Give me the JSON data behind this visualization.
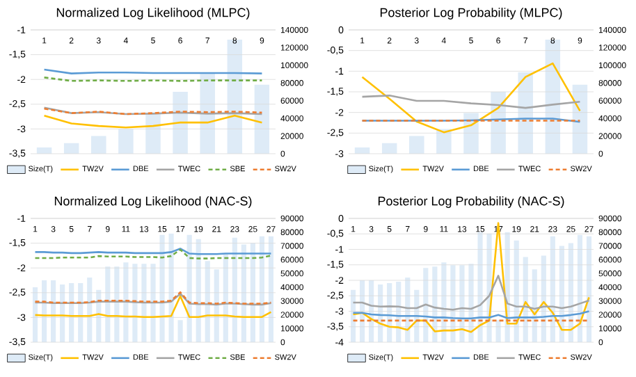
{
  "chart_data": [
    {
      "type": "line",
      "title": "Normalized Log Likelihood (MLPC)",
      "categories": [
        "1",
        "2",
        "3",
        "4",
        "5",
        "6",
        "7",
        "8",
        "9"
      ],
      "series": [
        {
          "name": "Size(T)",
          "type": "bar",
          "axis": "y2",
          "color": "#deebf7",
          "values": [
            7000,
            12000,
            20000,
            28000,
            46000,
            70000,
            92000,
            129000,
            78000
          ]
        },
        {
          "name": "TW2V",
          "color": "#ffc000",
          "values": [
            -2.73,
            -2.89,
            -2.94,
            -2.97,
            -2.94,
            -2.87,
            -2.87,
            -2.73,
            -2.87
          ]
        },
        {
          "name": "DBE",
          "color": "#5b9bd5",
          "values": [
            -1.8,
            -1.88,
            -1.86,
            -1.86,
            -1.87,
            -1.87,
            -1.87,
            -1.87,
            -1.88
          ]
        },
        {
          "name": "TWEC",
          "color": "#a5a5a5",
          "values": [
            -2.57,
            -2.68,
            -2.66,
            -2.7,
            -2.69,
            -2.67,
            -2.69,
            -2.68,
            -2.7
          ]
        },
        {
          "name": "SBE",
          "color": "#70ad47",
          "line_style": "dashed",
          "values": [
            -1.96,
            -2.03,
            -2.02,
            -2.03,
            -2.02,
            -2.03,
            -2.02,
            -2.02,
            -2.02
          ]
        },
        {
          "name": "SW2V",
          "color": "#ed7d31",
          "line_style": "dashed",
          "values": [
            -2.59,
            -2.68,
            -2.65,
            -2.7,
            -2.68,
            -2.65,
            -2.66,
            -2.65,
            -2.67
          ]
        }
      ],
      "ylim": [
        -3.5,
        -1
      ],
      "yticks": [
        -1,
        {
          "value": -1.5,
          "label": "-1,5"
        },
        -2,
        {
          "value": -2.5,
          "label": "-2,5"
        },
        -3,
        {
          "value": -3.5,
          "label": "-3,5"
        }
      ],
      "y2lim": [
        0,
        140000
      ],
      "y2ticks": [
        0,
        20000,
        40000,
        60000,
        80000,
        100000,
        120000,
        140000
      ],
      "grid": "y",
      "legend": "bottom"
    },
    {
      "type": "line",
      "title": "Posterior Log Probability (MLPC)",
      "categories": [
        "1",
        "2",
        "3",
        "4",
        "5",
        "6",
        "7",
        "8",
        "9"
      ],
      "series": [
        {
          "name": "Size(T)",
          "type": "bar",
          "axis": "y2",
          "color": "#deebf7",
          "values": [
            7000,
            12000,
            20000,
            28000,
            46000,
            70000,
            92000,
            129000,
            78000
          ]
        },
        {
          "name": "TW2V",
          "color": "#ffc000",
          "values": [
            -1.14,
            -1.67,
            -2.22,
            -2.48,
            -2.31,
            -1.89,
            -1.14,
            -0.81,
            -1.96
          ]
        },
        {
          "name": "DBE",
          "color": "#5b9bd5",
          "values": [
            -2.2,
            -2.2,
            -2.2,
            -2.2,
            -2.19,
            -2.17,
            -2.15,
            -2.15,
            -2.23
          ]
        },
        {
          "name": "TWEC",
          "color": "#a5a5a5",
          "values": [
            -1.62,
            -1.59,
            -1.72,
            -1.72,
            -1.78,
            -1.82,
            -1.89,
            -1.81,
            -1.74
          ]
        },
        {
          "name": "SW2V",
          "color": "#ed7d31",
          "line_style": "dashed",
          "values": [
            -2.2,
            -2.2,
            -2.2,
            -2.2,
            -2.2,
            -2.2,
            -2.2,
            -2.2,
            -2.2
          ]
        }
      ],
      "ylim": [
        -3,
        0
      ],
      "yticks": [
        0,
        {
          "value": -0.5,
          "label": "-0,5"
        },
        -1,
        {
          "value": -1.5,
          "label": "-1,5"
        },
        -2,
        {
          "value": -2.5,
          "label": "-2,5"
        },
        -3
      ],
      "y2lim": [
        0,
        140000
      ],
      "y2ticks": [
        0,
        20000,
        40000,
        60000,
        80000,
        100000,
        120000,
        140000
      ],
      "grid": "y",
      "legend": "bottom"
    },
    {
      "type": "line",
      "title": "Normalized Log Likelihood (NAC-S)",
      "categories": [
        "1",
        null,
        "3",
        null,
        "5",
        null,
        "7",
        null,
        "9",
        null,
        "11",
        null,
        "13",
        null,
        "15",
        null,
        "17",
        null,
        "19",
        null,
        "21",
        null,
        "23",
        null,
        "25",
        null,
        "27"
      ],
      "series": [
        {
          "name": "Size(T)",
          "type": "bar",
          "axis": "y2",
          "color": "#deebf7",
          "values": [
            40000,
            45000,
            45000,
            42000,
            43000,
            43000,
            47000,
            38000,
            55000,
            55000,
            58000,
            57000,
            57000,
            57000,
            78000,
            79000,
            16000,
            78000,
            75000,
            59000,
            53000,
            64000,
            76000,
            71000,
            72000,
            77000,
            77000
          ]
        },
        {
          "name": "TW2V",
          "color": "#ffc000",
          "values": [
            -2.95,
            -2.96,
            -2.96,
            -2.96,
            -2.97,
            -2.97,
            -2.97,
            -2.93,
            -2.97,
            -2.97,
            -2.98,
            -2.98,
            -2.99,
            -2.99,
            -2.98,
            -2.97,
            -2.57,
            -2.99,
            -2.99,
            -2.96,
            -2.96,
            -2.96,
            -2.98,
            -2.99,
            -2.99,
            -2.99,
            -2.89
          ]
        },
        {
          "name": "DBE",
          "color": "#5b9bd5",
          "values": [
            -1.68,
            -1.68,
            -1.69,
            -1.69,
            -1.7,
            -1.7,
            -1.69,
            -1.68,
            -1.69,
            -1.69,
            -1.69,
            -1.7,
            -1.7,
            -1.7,
            -1.7,
            -1.68,
            -1.61,
            -1.71,
            -1.72,
            -1.72,
            -1.72,
            -1.71,
            -1.71,
            -1.71,
            -1.71,
            -1.71,
            -1.71
          ]
        },
        {
          "name": "TWEC",
          "color": "#a5a5a5",
          "values": [
            -2.7,
            -2.7,
            -2.71,
            -2.71,
            -2.71,
            -2.71,
            -2.7,
            -2.68,
            -2.68,
            -2.68,
            -2.68,
            -2.69,
            -2.7,
            -2.7,
            -2.7,
            -2.68,
            -2.52,
            -2.72,
            -2.73,
            -2.73,
            -2.74,
            -2.72,
            -2.72,
            -2.73,
            -2.74,
            -2.74,
            -2.71
          ]
        },
        {
          "name": "SBE",
          "color": "#70ad47",
          "line_style": "dashed",
          "values": [
            -1.8,
            -1.8,
            -1.8,
            -1.79,
            -1.79,
            -1.79,
            -1.79,
            -1.76,
            -1.77,
            -1.77,
            -1.77,
            -1.78,
            -1.78,
            -1.78,
            -1.79,
            -1.76,
            -1.63,
            -1.8,
            -1.81,
            -1.81,
            -1.8,
            -1.8,
            -1.8,
            -1.8,
            -1.8,
            -1.79,
            -1.75
          ]
        },
        {
          "name": "SW2V",
          "color": "#ed7d31",
          "line_style": "dashed",
          "values": [
            -2.68,
            -2.68,
            -2.7,
            -2.7,
            -2.7,
            -2.7,
            -2.69,
            -2.66,
            -2.66,
            -2.66,
            -2.66,
            -2.67,
            -2.68,
            -2.68,
            -2.68,
            -2.66,
            -2.49,
            -2.7,
            -2.71,
            -2.71,
            -2.72,
            -2.7,
            -2.71,
            -2.72,
            -2.72,
            -2.72,
            -2.7
          ]
        }
      ],
      "ylim": [
        -3.5,
        -1
      ],
      "yticks": [
        -1,
        {
          "value": -1.5,
          "label": "-1,5"
        },
        -2,
        {
          "value": -2.5,
          "label": "-2,5"
        },
        -3,
        {
          "value": -3.5,
          "label": "-3,5"
        }
      ],
      "y2lim": [
        0,
        90000
      ],
      "y2ticks": [
        0,
        10000,
        20000,
        30000,
        40000,
        50000,
        60000,
        70000,
        80000,
        90000
      ],
      "grid": "y",
      "legend": "bottom"
    },
    {
      "type": "line",
      "title": "Posterior Log Probability (NAC-S)",
      "categories": [
        "1",
        null,
        "3",
        null,
        "5",
        null,
        "7",
        null,
        "9",
        null,
        "11",
        null,
        "13",
        null,
        "15",
        null,
        "17",
        null,
        "19",
        null,
        "21",
        null,
        "23",
        null,
        "25",
        null,
        "27"
      ],
      "series": [
        {
          "name": "Size(T)",
          "type": "bar",
          "axis": "y2",
          "color": "#deebf7",
          "values": [
            38000,
            45000,
            45000,
            42000,
            43000,
            44000,
            47000,
            38000,
            54000,
            55000,
            58000,
            56000,
            56000,
            57000,
            80000,
            79000,
            16000,
            80000,
            74000,
            62000,
            53000,
            63000,
            77000,
            70000,
            72000,
            78000,
            77000
          ]
        },
        {
          "name": "TW2V",
          "color": "#ffc000",
          "values": [
            -3.1,
            -3.05,
            -3.25,
            -3.4,
            -3.5,
            -3.52,
            -3.6,
            -3.3,
            -3.3,
            -3.65,
            -3.62,
            -3.62,
            -3.58,
            -3.67,
            -3.45,
            -3.3,
            -0.15,
            -3.4,
            -3.4,
            -2.7,
            -3.1,
            -2.7,
            -3.05,
            -3.6,
            -3.6,
            -3.4,
            -2.55
          ]
        },
        {
          "name": "DBE",
          "color": "#5b9bd5",
          "values": [
            -3.05,
            -3.05,
            -3.1,
            -3.12,
            -3.13,
            -3.15,
            -3.15,
            -3.15,
            -3.17,
            -3.2,
            -3.2,
            -3.22,
            -3.23,
            -3.23,
            -3.2,
            -3.2,
            -3.12,
            -3.22,
            -3.2,
            -3.2,
            -3.2,
            -3.18,
            -3.15,
            -3.15,
            -3.12,
            -3.08,
            -3.0
          ]
        },
        {
          "name": "TWEC",
          "color": "#a5a5a5",
          "values": [
            -2.72,
            -2.72,
            -2.82,
            -2.85,
            -2.84,
            -2.85,
            -2.9,
            -2.9,
            -2.78,
            -2.88,
            -2.92,
            -2.95,
            -2.9,
            -2.92,
            -2.8,
            -2.5,
            -1.85,
            -2.75,
            -2.85,
            -2.85,
            -2.92,
            -2.85,
            -2.85,
            -2.9,
            -2.85,
            -2.75,
            -2.65
          ]
        },
        {
          "name": "SW2V",
          "color": "#ed7d31",
          "line_style": "dashed",
          "values": [
            -3.3,
            -3.3,
            -3.3,
            -3.3,
            -3.3,
            -3.3,
            -3.3,
            -3.3,
            -3.3,
            -3.3,
            -3.3,
            -3.3,
            -3.3,
            -3.3,
            -3.3,
            -3.3,
            -3.3,
            -3.3,
            -3.3,
            -3.3,
            -3.3,
            -3.3,
            -3.3,
            -3.3,
            -3.3,
            -3.3,
            -3.3
          ]
        }
      ],
      "ylim": [
        -4,
        0
      ],
      "yticks": [
        0,
        {
          "value": -0.5,
          "label": "-0,5"
        },
        -1,
        {
          "value": -1.5,
          "label": "-1,5"
        },
        -2,
        {
          "value": -2.5,
          "label": "-2,5"
        },
        -3,
        {
          "value": -3.5,
          "label": "-3,5"
        },
        -4
      ],
      "y2lim": [
        0,
        90000
      ],
      "y2ticks": [
        0,
        10000,
        20000,
        30000,
        40000,
        50000,
        60000,
        70000,
        80000,
        90000
      ],
      "grid": "y",
      "legend": "bottom"
    }
  ]
}
